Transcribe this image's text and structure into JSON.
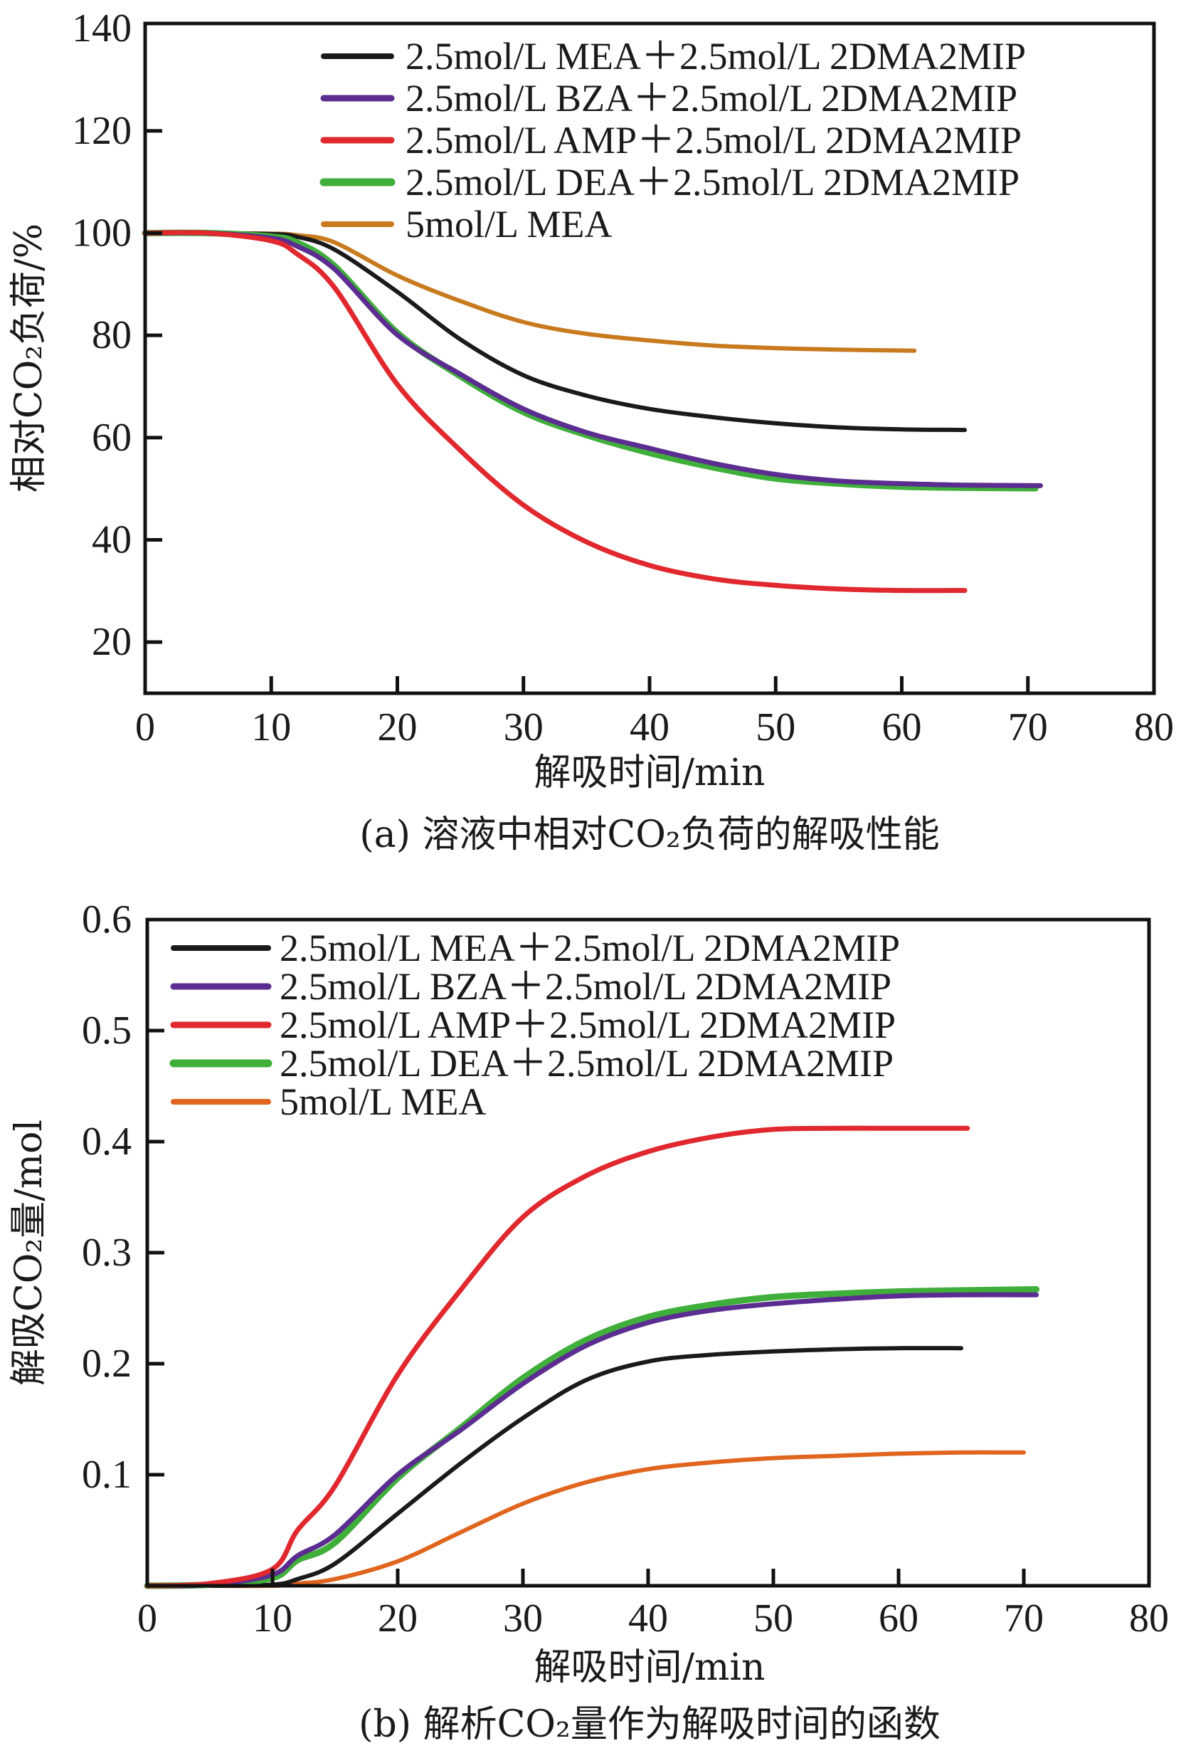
{
  "chart_data": [
    {
      "id": "a",
      "type": "line",
      "title": "",
      "caption": "(a) 溶液中相对CO₂负荷的解吸性能",
      "xlabel": "解吸时间/min",
      "ylabel": "相对CO₂负荷/%",
      "xlim": [
        0,
        80
      ],
      "ylim": [
        10,
        141
      ],
      "xticks": [
        0,
        10,
        20,
        30,
        40,
        50,
        60,
        70,
        80
      ],
      "xtick_labels": [
        "0",
        "10",
        "20",
        "30",
        "40",
        "50",
        "60",
        "70",
        "80"
      ],
      "yticks": [
        20,
        40,
        60,
        80,
        100,
        120,
        140
      ],
      "ytick_labels": [
        "20",
        "40",
        "60",
        "80",
        "100",
        "120",
        "140"
      ],
      "grid": false,
      "legend_position": "top-right",
      "series": [
        {
          "name": "2.5mol/L MEA＋2.5mol/L 2DMA2MIP",
          "color": "#1a1a1a",
          "x": [
            0,
            5,
            10,
            12,
            15,
            20,
            25,
            30,
            35,
            40,
            45,
            50,
            55,
            60,
            65
          ],
          "y": [
            100,
            100,
            99.8,
            99.3,
            96.8,
            88.5,
            79.2,
            72.2,
            68.2,
            65.6,
            64,
            62.8,
            62,
            61.6,
            61.5
          ]
        },
        {
          "name": "2.5mol/L BZA＋2.5mol/L 2DMA2MIP",
          "color": "#5b2d91",
          "x": [
            0,
            5,
            10,
            12,
            15,
            20,
            25,
            30,
            35,
            40,
            45,
            50,
            55,
            60,
            65,
            71
          ],
          "y": [
            100,
            100,
            99,
            97.5,
            93,
            80.1,
            72.4,
            65.6,
            61,
            57.9,
            55,
            52.8,
            51.5,
            51,
            50.7,
            50.6
          ]
        },
        {
          "name": "2.5mol/L AMP＋2.5mol/L 2DMA2MIP",
          "color": "#e0282e",
          "x": [
            0,
            5,
            10,
            12,
            15,
            20,
            25,
            30,
            35,
            40,
            45,
            50,
            55,
            60,
            65
          ],
          "y": [
            100,
            100,
            98.5,
            96,
            89.4,
            70.4,
            57.5,
            46.8,
            39.6,
            35,
            32.4,
            31.1,
            30.4,
            30.1,
            30.1
          ]
        },
        {
          "name": "2.5mol/L DEA＋2.5mol/L 2DMA2MIP",
          "color": "#3fae3a",
          "x": [
            0,
            5,
            10,
            12,
            15,
            20,
            25,
            30,
            35,
            40,
            45,
            50,
            55,
            60,
            65,
            70.6
          ],
          "y": [
            100,
            100,
            99.3,
            98.2,
            93.6,
            80.5,
            72,
            65,
            60.5,
            57,
            54.2,
            52,
            51,
            50.4,
            50.2,
            50.1
          ]
        },
        {
          "name": "5mol/L MEA",
          "color": "#c87a1e",
          "x": [
            0,
            5,
            10,
            12,
            15,
            20,
            25,
            30,
            35,
            40,
            45,
            50,
            55,
            61
          ],
          "y": [
            100,
            100,
            99.9,
            99.6,
            98.2,
            91.7,
            86.7,
            82.6,
            80.3,
            79,
            78,
            77.5,
            77.2,
            77
          ]
        }
      ]
    },
    {
      "id": "b",
      "type": "line",
      "title": "",
      "caption": "(b) 解析CO₂量作为解吸时间的函数",
      "xlabel": "解吸时间/min",
      "ylabel": "解吸CO₂量/mol",
      "xlim": [
        0,
        80
      ],
      "ylim": [
        0,
        0.6
      ],
      "xticks": [
        0,
        10,
        20,
        30,
        40,
        50,
        60,
        70,
        80
      ],
      "xtick_labels": [
        "0",
        "10",
        "20",
        "30",
        "40",
        "50",
        "60",
        "70",
        "80"
      ],
      "yticks": [
        0.1,
        0.2,
        0.3,
        0.4,
        0.5,
        0.6
      ],
      "ytick_labels": [
        "0.1",
        "0.2",
        "0.3",
        "0.4",
        "0.5",
        "0.6"
      ],
      "grid": false,
      "legend_position": "top-left",
      "series": [
        {
          "name": "2.5mol/L MEA＋2.5mol/L 2DMA2MIP",
          "color": "#1a1a1a",
          "x": [
            0,
            5,
            10,
            12,
            15,
            20,
            25,
            30,
            35,
            40,
            45,
            50,
            55,
            60,
            65
          ],
          "y": [
            0,
            0,
            0.001,
            0.006,
            0.02,
            0.065,
            0.11,
            0.151,
            0.185,
            0.202,
            0.208,
            0.211,
            0.213,
            0.214,
            0.214
          ]
        },
        {
          "name": "2.5mol/L BZA＋2.5mol/L 2DMA2MIP",
          "color": "#5b2d91",
          "x": [
            0,
            5,
            10,
            12,
            15,
            20,
            25,
            30,
            35,
            40,
            45,
            50,
            55,
            60,
            65,
            71
          ],
          "y": [
            0,
            0.001,
            0.01,
            0.027,
            0.046,
            0.1,
            0.14,
            0.182,
            0.216,
            0.237,
            0.248,
            0.254,
            0.258,
            0.261,
            0.262,
            0.262
          ]
        },
        {
          "name": "2.5mol/L AMP＋2.5mol/L 2DMA2MIP",
          "color": "#e0282e",
          "x": [
            0,
            5,
            10,
            12,
            15,
            20,
            25,
            30,
            35,
            40,
            45,
            50,
            55,
            60,
            65.5
          ],
          "y": [
            0,
            0.002,
            0.015,
            0.05,
            0.09,
            0.19,
            0.266,
            0.332,
            0.369,
            0.391,
            0.404,
            0.411,
            0.412,
            0.412,
            0.412
          ]
        },
        {
          "name": "2.5mol/L DEA＋2.5mol/L 2DMA2MIP",
          "color": "#3fae3a",
          "x": [
            0,
            5,
            10,
            12,
            15,
            20,
            25,
            30,
            35,
            40,
            45,
            50,
            55,
            60,
            65,
            71
          ],
          "y": [
            0,
            0.001,
            0.007,
            0.023,
            0.039,
            0.097,
            0.142,
            0.187,
            0.221,
            0.242,
            0.253,
            0.26,
            0.263,
            0.265,
            0.266,
            0.267
          ]
        },
        {
          "name": "5mol/L MEA",
          "color": "#e0651e",
          "x": [
            0,
            5,
            10,
            12,
            15,
            20,
            25,
            30,
            35,
            40,
            45,
            50,
            55,
            60,
            65,
            70
          ],
          "y": [
            0,
            0,
            0,
            0.002,
            0.006,
            0.022,
            0.048,
            0.074,
            0.093,
            0.105,
            0.111,
            0.115,
            0.117,
            0.119,
            0.12,
            0.12
          ]
        }
      ]
    }
  ]
}
